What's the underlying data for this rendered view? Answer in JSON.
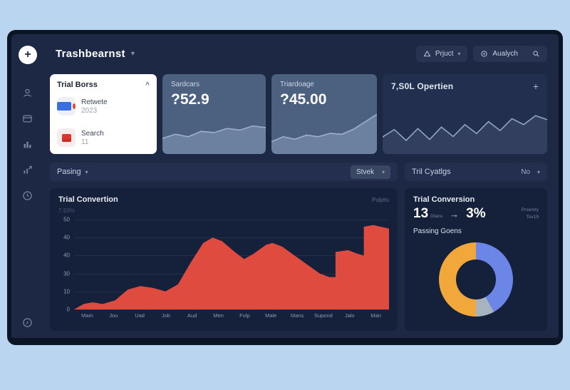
{
  "header": {
    "title": "Trashbearnst",
    "project_label": "Prjuct",
    "search_label": "Aualych"
  },
  "icons": {
    "plus": "+",
    "caret_down": "▾",
    "caret_up": "^",
    "arrow_right": "→"
  },
  "trial_borss_card": {
    "title": "Trial Borss",
    "items": [
      {
        "label": "Retwete",
        "value": "2023"
      },
      {
        "label": "Search",
        "value": "11"
      }
    ]
  },
  "stat_cards": [
    {
      "label": "Sardcars",
      "value": "?52.9"
    },
    {
      "label": "Triardoage",
      "value": "?45.00"
    }
  ],
  "operation_card": {
    "title": "7,S0L Opertien",
    "action": "+"
  },
  "filter_row": {
    "left_label": "Pasing",
    "right_button": "Stvek"
  },
  "right_filter_row": {
    "label": "Tril Cyatlgs",
    "dropdown": "No"
  },
  "main_chart_card": {
    "title": "Trial Convertion",
    "subtitle": "7,93%",
    "corner_label": "Poljets"
  },
  "summary_panel": {
    "title": "Trial Conversion",
    "value_left": "13",
    "value_left_sub": "Dtans",
    "arrow": "→",
    "value_right": "3%",
    "side_note_line1": "Prsentry",
    "side_note_line2": "Tov19",
    "donut_label": "Passing Goens"
  },
  "colors": {
    "page_background": "#B9D5EF",
    "window_background": "#1D2944",
    "panel_background": "#15203A",
    "accent_red": "#E04B40",
    "slate_card": "#4C6180"
  },
  "chart_data": [
    {
      "id": "main_area",
      "type": "area",
      "title": "Trial Convertion",
      "categories": [
        "Mam",
        "Jou",
        "Uad",
        "Job",
        "Aud",
        "Men",
        "Fulp",
        "Male",
        "Mans",
        "Supond",
        "Jalo",
        "Man"
      ],
      "y_tick_labels": [
        "50",
        "40",
        "40",
        "30",
        "10",
        "0"
      ],
      "ylim": [
        0,
        50
      ],
      "color": "#E04B40",
      "grid": true,
      "points": [
        [
          0,
          0
        ],
        [
          3,
          3
        ],
        [
          6,
          4
        ],
        [
          9,
          3
        ],
        [
          13,
          5
        ],
        [
          17,
          11
        ],
        [
          21,
          13
        ],
        [
          25,
          12
        ],
        [
          29,
          10
        ],
        [
          33,
          14
        ],
        [
          37,
          26
        ],
        [
          41,
          37
        ],
        [
          44,
          40
        ],
        [
          47,
          38
        ],
        [
          51,
          32
        ],
        [
          54,
          28
        ],
        [
          57,
          31
        ],
        [
          61,
          36
        ],
        [
          63,
          37
        ],
        [
          66,
          35
        ],
        [
          70,
          30
        ],
        [
          74,
          25
        ],
        [
          78,
          20
        ],
        [
          81,
          18
        ],
        [
          83,
          18
        ],
        [
          83,
          32
        ],
        [
          87,
          33
        ],
        [
          90,
          31
        ],
        [
          92,
          30
        ],
        [
          92,
          46
        ],
        [
          95,
          47
        ],
        [
          100,
          45
        ]
      ]
    },
    {
      "id": "donut",
      "type": "pie",
      "title": "Passing Goens",
      "legend_position": "none",
      "slices": [
        {
          "label": "blue",
          "value": 42,
          "color": "#6C86E8"
        },
        {
          "label": "gray",
          "value": 8,
          "color": "#A9B3BF"
        },
        {
          "label": "orange",
          "value": 50,
          "color": "#F2A73B"
        }
      ]
    },
    {
      "id": "spark_sardcars",
      "type": "area",
      "values": [
        38,
        48,
        42,
        55,
        52,
        62,
        58,
        68,
        64
      ],
      "line_color": "#9DB1CC",
      "fill_color": "rgba(160,180,210,0.38)"
    },
    {
      "id": "spark_triardoage",
      "type": "area",
      "values": [
        30,
        42,
        36,
        46,
        42,
        50,
        48,
        60,
        78,
        96
      ],
      "line_color": "#9DB1CC",
      "fill_color": "rgba(160,180,210,0.38)"
    },
    {
      "id": "spark_opertien",
      "type": "line",
      "values": [
        35,
        50,
        28,
        52,
        30,
        55,
        36,
        60,
        42,
        66,
        48,
        72,
        60,
        78,
        70
      ],
      "line_color": "#8FA5C6",
      "fill_color": "rgba(120,140,175,0.18)"
    }
  ]
}
